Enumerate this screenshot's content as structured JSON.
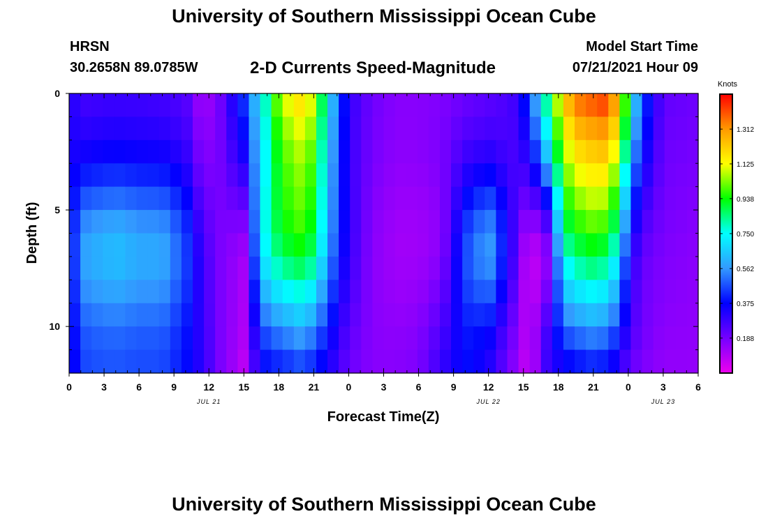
{
  "header": {
    "title": "University of Southern Mississippi Ocean Cube",
    "station": "HRSN",
    "coordinates": "30.2658N  89.0785W",
    "plot_title": "2-D Currents Speed-Magnitude",
    "model_start_label": "Model Start Time",
    "model_start_time": "07/21/2021 Hour 09"
  },
  "footer": {
    "title": "University of Southern Mississippi Ocean Cube"
  },
  "chart_data": {
    "type": "heatmap",
    "title": "2-D Currents Speed-Magnitude",
    "xlabel": "Forecast Time(Z)",
    "ylabel": "Depth (ft)",
    "x_tick_labels": [
      "0",
      "3",
      "6",
      "9",
      "12",
      "15",
      "18",
      "21",
      "0",
      "3",
      "6",
      "9",
      "12",
      "15",
      "18",
      "21",
      "0",
      "3",
      "6"
    ],
    "x_range_hours": [
      0,
      54
    ],
    "date_labels": [
      {
        "text": "JUL 21",
        "hour": 12
      },
      {
        "text": "JUL 22",
        "hour": 36
      },
      {
        "text": "JUL 23",
        "hour": 51
      }
    ],
    "y_tick_labels": [
      "0",
      "5",
      "10"
    ],
    "y_range_ft": [
      0,
      12
    ],
    "y_inverted": true,
    "colorbar": {
      "label": "Knots",
      "min": 0.0,
      "max": 1.5,
      "tick_labels": [
        "1.312",
        "1.125",
        "0.938",
        "0.750",
        "0.562",
        "0.375",
        "0.188"
      ],
      "tick_values": [
        1.312,
        1.125,
        0.938,
        0.75,
        0.562,
        0.375,
        0.188
      ],
      "colors": [
        "#ee00ee",
        "#7a00ff",
        "#0000ff",
        "#3399ff",
        "#00ffff",
        "#00ff00",
        "#ffff00",
        "#ff9900",
        "#ff0000"
      ],
      "color_stops": [
        0.0,
        0.12,
        0.25,
        0.375,
        0.5,
        0.625,
        0.75,
        0.875,
        1.0
      ]
    },
    "time_profile": {
      "hours": [
        0,
        1.5,
        3,
        4,
        6,
        8,
        10,
        11.5,
        13,
        15,
        16.5,
        18,
        19,
        20,
        21,
        22.5,
        24,
        26,
        28,
        30,
        32,
        34,
        36,
        38,
        39.5,
        41,
        42.5,
        44,
        45,
        46,
        47,
        48,
        49,
        51,
        54
      ],
      "surface_kn": [
        0.32,
        0.26,
        0.27,
        0.27,
        0.27,
        0.26,
        0.24,
        0.1,
        0.2,
        0.45,
        0.72,
        1.05,
        1.15,
        1.2,
        1.1,
        0.65,
        0.3,
        0.2,
        0.16,
        0.16,
        0.17,
        0.2,
        0.22,
        0.26,
        0.45,
        0.85,
        1.25,
        1.4,
        1.42,
        1.45,
        1.3,
        0.9,
        0.5,
        0.22,
        0.2
      ],
      "bottom_kn": [
        0.33,
        0.45,
        0.46,
        0.46,
        0.45,
        0.45,
        0.38,
        0.3,
        0.18,
        0.08,
        0.35,
        0.38,
        0.4,
        0.43,
        0.38,
        0.3,
        0.2,
        0.16,
        0.16,
        0.18,
        0.3,
        0.38,
        0.3,
        0.16,
        0.05,
        0.3,
        0.33,
        0.36,
        0.38,
        0.36,
        0.3,
        0.22,
        0.18,
        0.14,
        0.14
      ],
      "mid_peak_kn": [
        0.38,
        0.58,
        0.6,
        0.62,
        0.58,
        0.58,
        0.45,
        0.25,
        0.18,
        0.15,
        0.72,
        0.9,
        0.95,
        0.98,
        0.9,
        0.55,
        0.3,
        0.16,
        0.12,
        0.12,
        0.15,
        0.45,
        0.58,
        0.3,
        0.08,
        0.2,
        0.85,
        0.95,
        0.98,
        0.95,
        0.82,
        0.45,
        0.25,
        0.18,
        0.16
      ]
    }
  }
}
